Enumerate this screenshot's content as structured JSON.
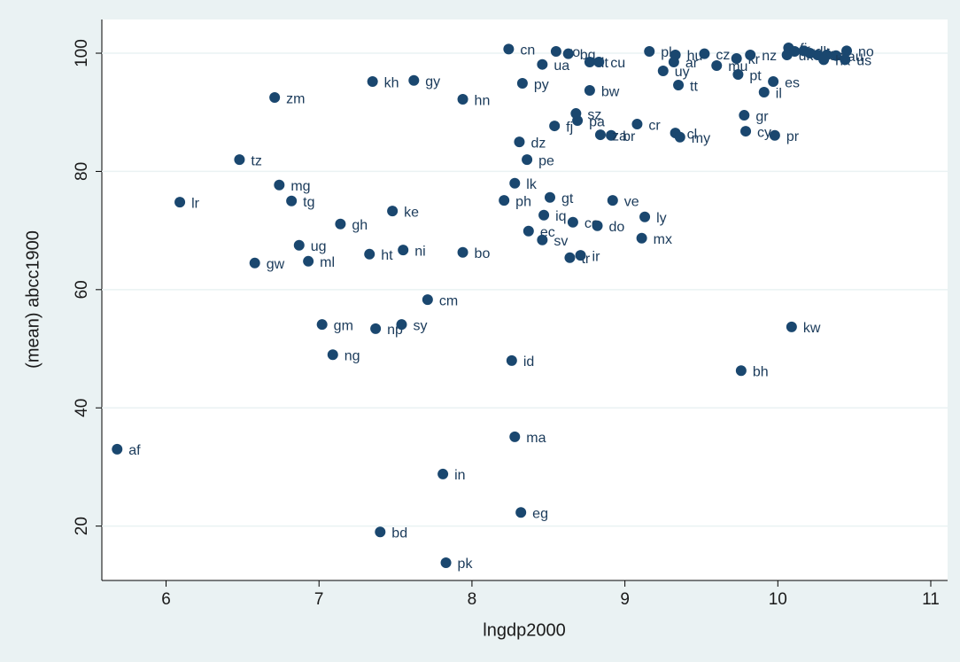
{
  "chart_data": {
    "type": "scatter",
    "xlabel": "lngdp2000",
    "ylabel": "(mean) abcc1900",
    "color": "#1a476f",
    "grid": true,
    "xlim": [
      5.58,
      11.11
    ],
    "ylim": [
      10.8,
      105.7
    ],
    "xticks": [
      6,
      7,
      8,
      9,
      10,
      11
    ],
    "yticks": [
      20,
      40,
      60,
      80,
      100
    ],
    "point_labels": [
      "af",
      "lr",
      "tz",
      "zm",
      "mg",
      "tg",
      "gw",
      "ml",
      "ug",
      "gh",
      "gm",
      "ng",
      "kh",
      "gy",
      "ke",
      "ht",
      "ni",
      "np",
      "sy",
      "bd",
      "cm",
      "hn",
      "bo",
      "in",
      "pk",
      "cn",
      "ua",
      "py",
      "dz",
      "pe",
      "lk",
      "ph",
      "gt",
      "iq",
      "ec",
      "sv",
      "co",
      "do",
      "tr",
      "ir",
      "id",
      "ma",
      "eg",
      "fj",
      "pa",
      "sz",
      "ro",
      "bg",
      "lt",
      "cu",
      "bw",
      "cr",
      "br",
      "za",
      "ve",
      "ly",
      "mx",
      "pl",
      "hu",
      "ar",
      "uy",
      "tt",
      "cz",
      "mu",
      "kr",
      "nz",
      "pt",
      "es",
      "il",
      "gr",
      "cy",
      "pr",
      "cl",
      "my",
      "kw",
      "bh",
      "fi",
      "uk",
      "fr",
      "dk",
      "de",
      "ca",
      "nl",
      "au",
      "hk",
      "no",
      "us"
    ],
    "x": [
      5.68,
      6.09,
      6.48,
      6.71,
      6.74,
      6.82,
      6.58,
      6.93,
      6.87,
      7.14,
      7.02,
      7.09,
      7.35,
      7.62,
      7.48,
      7.33,
      7.55,
      7.37,
      7.54,
      7.4,
      7.71,
      7.94,
      7.94,
      7.81,
      7.83,
      8.24,
      8.46,
      8.33,
      8.31,
      8.36,
      8.28,
      8.21,
      8.51,
      8.47,
      8.37,
      8.46,
      8.66,
      8.82,
      8.64,
      8.71,
      8.26,
      8.28,
      8.32,
      8.54,
      8.69,
      8.68,
      8.55,
      8.63,
      8.77,
      8.83,
      8.77,
      9.08,
      8.91,
      8.84,
      8.92,
      9.13,
      9.11,
      9.16,
      9.33,
      9.32,
      9.25,
      9.35,
      9.52,
      9.6,
      9.73,
      9.82,
      9.74,
      9.97,
      9.91,
      9.78,
      9.79,
      9.98,
      9.33,
      9.36,
      10.09,
      9.76,
      10.07,
      10.06,
      10.11,
      10.17,
      10.21,
      10.26,
      10.32,
      10.38,
      10.3,
      10.45,
      10.44
    ],
    "values": [
      33.0,
      74.8,
      82.0,
      92.5,
      77.7,
      75.0,
      64.5,
      64.8,
      67.5,
      71.1,
      54.1,
      49.0,
      95.2,
      95.4,
      73.3,
      66.0,
      66.7,
      53.4,
      54.1,
      19.0,
      58.3,
      92.2,
      66.3,
      28.8,
      13.8,
      100.7,
      98.1,
      94.9,
      85.0,
      82.0,
      78.0,
      75.1,
      75.6,
      72.6,
      69.9,
      68.4,
      71.4,
      70.8,
      65.4,
      65.8,
      48.0,
      35.1,
      22.3,
      87.7,
      88.6,
      89.8,
      100.3,
      99.9,
      98.5,
      98.5,
      93.7,
      88.0,
      86.1,
      86.2,
      75.1,
      72.3,
      68.7,
      100.3,
      99.7,
      98.5,
      97.0,
      94.6,
      99.9,
      97.9,
      99.1,
      99.7,
      96.4,
      95.2,
      93.4,
      89.5,
      86.8,
      86.1,
      86.5,
      85.8,
      53.7,
      46.3,
      100.9,
      99.7,
      100.3,
      100.4,
      100.0,
      99.7,
      99.7,
      99.6,
      98.9,
      100.4,
      98.9
    ]
  }
}
